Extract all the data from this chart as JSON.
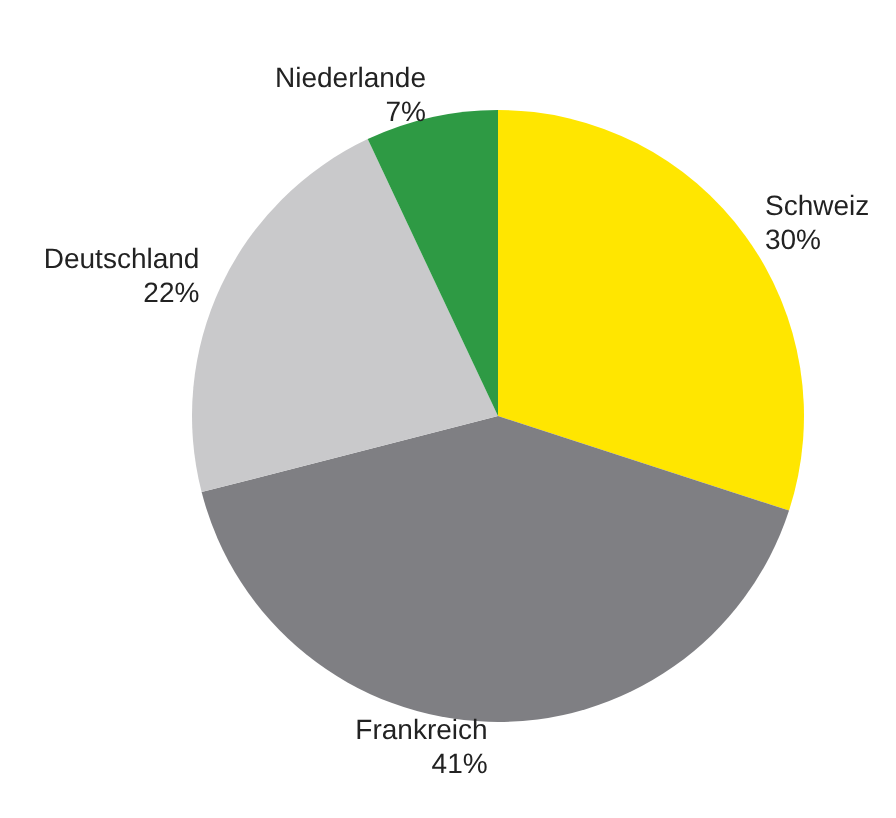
{
  "chart_data": {
    "type": "pie",
    "categories": [
      "Schweiz",
      "Frankreich",
      "Deutschland",
      "Niederlande"
    ],
    "values": [
      30,
      41,
      22,
      7
    ],
    "colors": [
      "#ffe600",
      "#7f7f83",
      "#c9c9cb",
      "#2e9a44"
    ],
    "value_labels": [
      "30%",
      "41%",
      "22%",
      "7%"
    ]
  }
}
